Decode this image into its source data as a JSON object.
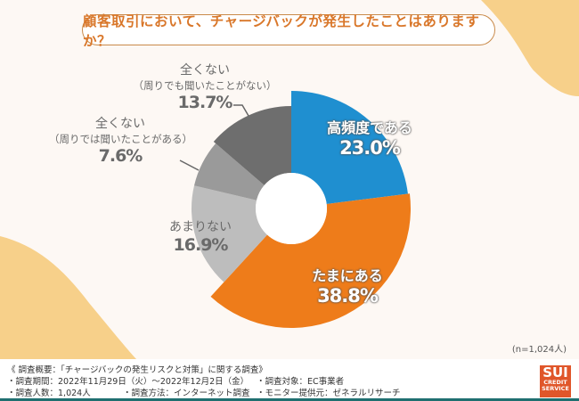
{
  "title": "顧客取引において、チャージバックが発生したことはありますか？",
  "sample_size": "(n=1,024人)",
  "colors": {
    "background": "#fdf8f4",
    "blob": "#f7d08a",
    "title_text": "#d9772a",
    "title_border": "#c98a4a",
    "frequent": "#1f8fd0",
    "sometimes": "#ee7c1a",
    "rarely": "#bdbdbd",
    "never_heard": "#9a9a9a",
    "never_not_heard": "#6e6e6e",
    "footer_bar": "#1f6f70",
    "logo_bg": "#e0562a"
  },
  "chart_data": {
    "type": "pie",
    "variant": "donut-varying-radius",
    "title": "顧客取引において、チャージバックが発生したことはありますか？",
    "unit": "%",
    "start": "top",
    "direction": "clockwise",
    "slices": [
      {
        "label": "高頻度である",
        "sublabel": "",
        "value": 23.0,
        "value_label": "23.0%",
        "color": "#1f8fd0",
        "relative_radius": 0.985
      },
      {
        "label": "たまにある",
        "sublabel": "",
        "value": 38.8,
        "value_label": "38.8%",
        "color": "#ee7c1a",
        "relative_radius": 1.0
      },
      {
        "label": "あまりない",
        "sublabel": "",
        "value": 16.9,
        "value_label": "16.9%",
        "color": "#bdbdbd",
        "relative_radius": 0.836
      },
      {
        "label": "全くない",
        "sublabel": "（周りでは聞いたことがある）",
        "value": 7.6,
        "value_label": "7.6%",
        "color": "#9a9a9a",
        "relative_radius": 0.836
      },
      {
        "label": "全くない",
        "sublabel": "（周りでも聞いたことがない）",
        "value": 13.7,
        "value_label": "13.7%",
        "color": "#6e6e6e",
        "relative_radius": 0.858
      }
    ],
    "note": "(n=1,024人)"
  },
  "footer": {
    "heading": "《 調査概要：「チャージバックの発生リスクと対策」に関する調査》",
    "period": "・調査期間：2022年11月29日（火）～2022年12月2日（金）",
    "count": "・調査人数：1,024人",
    "method": "・調査方法：インターネット調査",
    "target": "・調査対象：EC事業者",
    "provider": "・モニター提供元：ゼネラルリサーチ"
  },
  "logo": {
    "line1": "SUI",
    "line2": "CREDIT",
    "line3": "SERVICE"
  }
}
